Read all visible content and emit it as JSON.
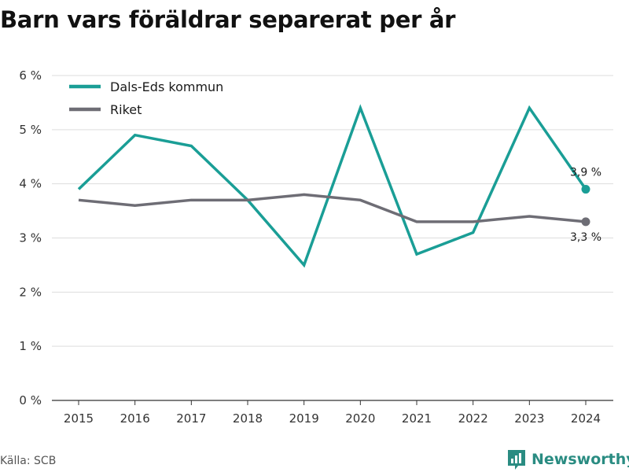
{
  "title": "Barn vars föräldrar separerat per år",
  "source": "Källa: SCB",
  "brand": "Newsworthy",
  "chart_data": {
    "type": "line",
    "title": "Barn vars föräldrar separerat per år",
    "x": [
      2015,
      2016,
      2017,
      2018,
      2019,
      2020,
      2021,
      2022,
      2023,
      2024
    ],
    "series": [
      {
        "name": "Dals-Eds kommun",
        "color": "#1a9e96",
        "values": [
          3.9,
          4.9,
          4.7,
          3.7,
          2.5,
          5.4,
          2.7,
          3.1,
          5.4,
          3.9
        ],
        "end_label": "3,9 %"
      },
      {
        "name": "Riket",
        "color": "#6e6d75",
        "values": [
          3.7,
          3.6,
          3.7,
          3.7,
          3.8,
          3.7,
          3.3,
          3.3,
          3.4,
          3.3
        ],
        "end_label": "3,3 %"
      }
    ],
    "ylim": [
      0,
      6
    ],
    "yticks": [
      0,
      1,
      2,
      3,
      4,
      5,
      6
    ],
    "ytick_labels": [
      "0 %",
      "1 %",
      "2 %",
      "3 %",
      "4 %",
      "5 %",
      "6 %"
    ],
    "grid": true,
    "legend": "top-left"
  }
}
